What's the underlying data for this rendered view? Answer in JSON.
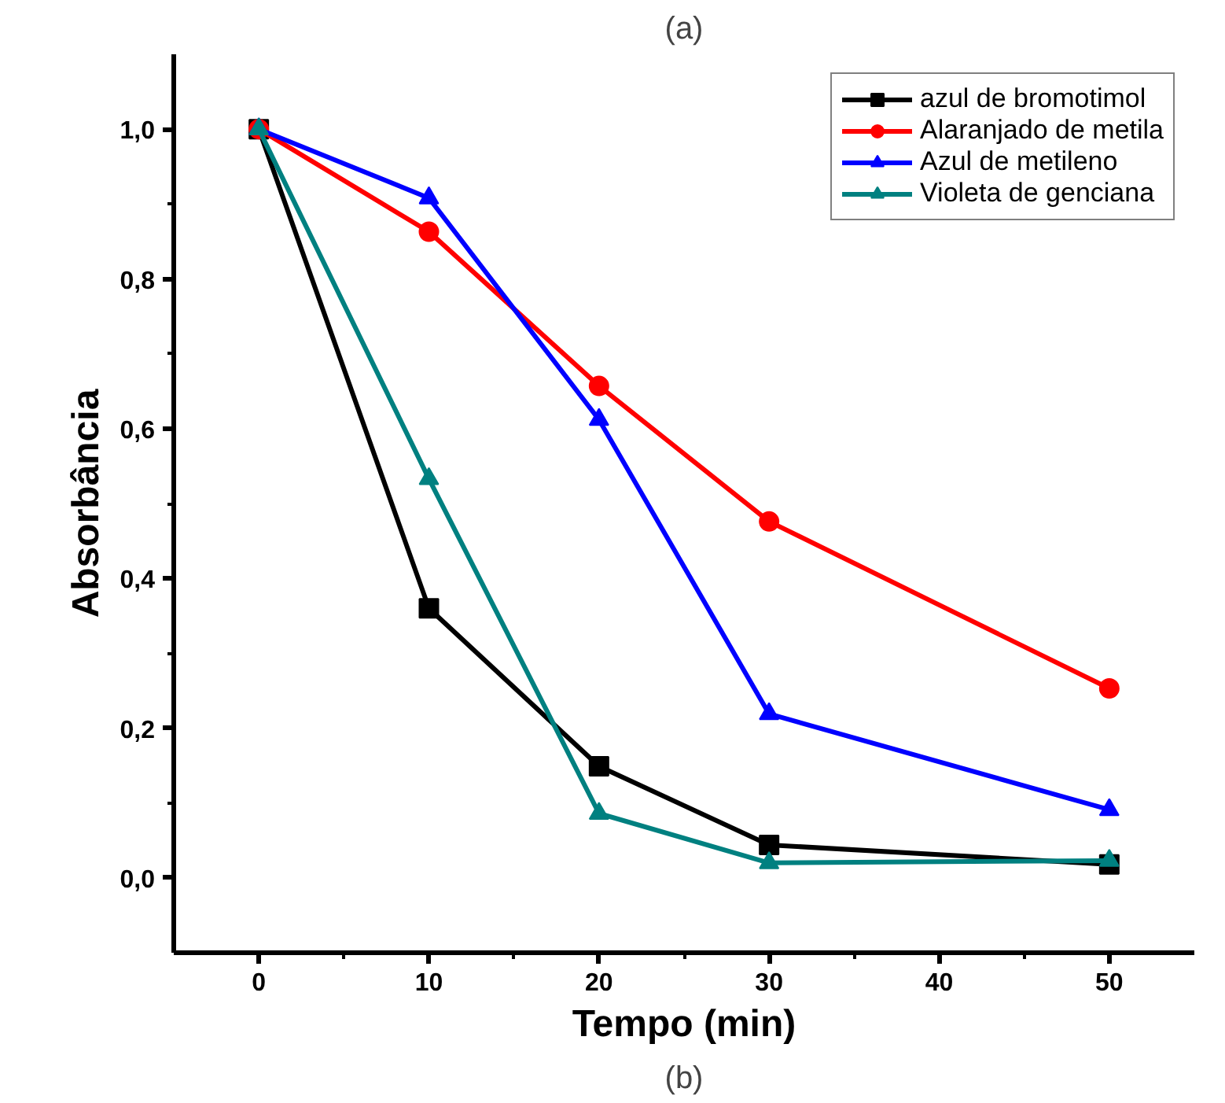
{
  "chart_data": {
    "type": "line",
    "title": "(a)",
    "xlabel": "Tempo (min)",
    "ylabel": "Absorbância",
    "x": [
      0,
      10,
      20,
      30,
      50
    ],
    "series": [
      {
        "name": "azul de bromotimol",
        "color": "#000000",
        "marker": "square",
        "values": [
          1.0,
          0.36,
          0.149,
          0.044,
          0.018
        ]
      },
      {
        "name": "Alaranjado de metila",
        "color": "#ff0000",
        "marker": "circle",
        "values": [
          1.0,
          0.863,
          0.657,
          0.476,
          0.253
        ]
      },
      {
        "name": "Azul de metileno",
        "color": "#0000ff",
        "marker": "triangle",
        "values": [
          1.0,
          0.908,
          0.612,
          0.219,
          0.091
        ]
      },
      {
        "name": "Violeta de genciana",
        "color": "#008080",
        "marker": "triangle",
        "values": [
          1.0,
          0.533,
          0.086,
          0.02,
          0.023
        ]
      }
    ],
    "xlim": [
      -5,
      55
    ],
    "ylim": [
      -0.1,
      1.1
    ],
    "xticks": [
      0,
      10,
      20,
      30,
      40,
      50
    ],
    "yticks": [
      {
        "value": 0.0,
        "label": "0,0"
      },
      {
        "value": 0.2,
        "label": "0,2"
      },
      {
        "value": 0.4,
        "label": "0,4"
      },
      {
        "value": 0.6,
        "label": "0,6"
      },
      {
        "value": 0.8,
        "label": "0,8"
      },
      {
        "value": 1.0,
        "label": "1,0"
      }
    ],
    "grid": false,
    "legend": "top right",
    "line_style": "solid",
    "annotations": [
      "(b)"
    ]
  }
}
